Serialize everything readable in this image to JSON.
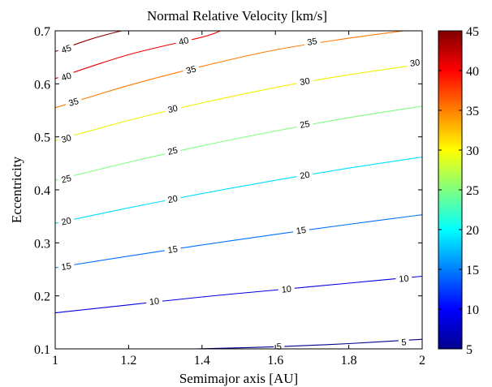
{
  "chart_data": {
    "type": "contour",
    "title": "Normal Relative Velocity [km/s]",
    "xlabel": "Semimajor axis [AU]",
    "ylabel": "Eccentricity",
    "xlim": [
      1,
      2
    ],
    "ylim": [
      0.1,
      0.7
    ],
    "x_ticks": [
      "1",
      "1.2",
      "1.4",
      "1.6",
      "1.8",
      "2"
    ],
    "y_ticks": [
      "0.1",
      "0.2",
      "0.3",
      "0.4",
      "0.5",
      "0.6",
      "0.7"
    ],
    "colorbar": {
      "colormap": "jet",
      "range": [
        5,
        45
      ],
      "ticks": [
        "5",
        "10",
        "15",
        "20",
        "25",
        "30",
        "35",
        "40",
        "45"
      ]
    },
    "contour_levels": [
      {
        "level": 5,
        "label": "5",
        "color": "#00008f",
        "points": [
          [
            1.38,
            0.1
          ],
          [
            1.6,
            0.104
          ],
          [
            1.8,
            0.11
          ],
          [
            2.0,
            0.118
          ]
        ],
        "label_positions": [
          [
            1.61,
            0.105
          ],
          [
            1.95,
            0.113
          ]
        ]
      },
      {
        "level": 10,
        "label": "10",
        "color": "#0000df",
        "points": [
          [
            1.0,
            0.168
          ],
          [
            1.2,
            0.183
          ],
          [
            1.4,
            0.198
          ],
          [
            1.6,
            0.211
          ],
          [
            1.8,
            0.224
          ],
          [
            2.0,
            0.237
          ]
        ],
        "label_positions": [
          [
            1.27,
            0.19
          ],
          [
            1.63,
            0.213
          ],
          [
            1.95,
            0.233
          ]
        ]
      },
      {
        "level": 15,
        "label": "15",
        "color": "#0070ff",
        "points": [
          [
            1.0,
            0.253
          ],
          [
            1.2,
            0.275
          ],
          [
            1.4,
            0.296
          ],
          [
            1.6,
            0.316
          ],
          [
            1.8,
            0.335
          ],
          [
            2.0,
            0.353
          ]
        ],
        "label_positions": [
          [
            1.03,
            0.256
          ],
          [
            1.32,
            0.288
          ],
          [
            1.67,
            0.324
          ]
        ]
      },
      {
        "level": 20,
        "label": "20",
        "color": "#00dfff",
        "points": [
          [
            1.0,
            0.337
          ],
          [
            1.2,
            0.366
          ],
          [
            1.4,
            0.393
          ],
          [
            1.6,
            0.418
          ],
          [
            1.8,
            0.441
          ],
          [
            2.0,
            0.462
          ]
        ],
        "label_positions": [
          [
            1.03,
            0.341
          ],
          [
            1.32,
            0.383
          ],
          [
            1.68,
            0.428
          ]
        ]
      },
      {
        "level": 25,
        "label": "25",
        "color": "#80ff80",
        "points": [
          [
            1.0,
            0.418
          ],
          [
            1.2,
            0.452
          ],
          [
            1.4,
            0.483
          ],
          [
            1.6,
            0.511
          ],
          [
            1.8,
            0.536
          ],
          [
            2.0,
            0.558
          ]
        ],
        "label_positions": [
          [
            1.03,
            0.421
          ],
          [
            1.32,
            0.474
          ],
          [
            1.68,
            0.524
          ]
        ]
      },
      {
        "level": 30,
        "label": "30",
        "color": "#f0f000",
        "points": [
          [
            1.0,
            0.493
          ],
          [
            1.2,
            0.531
          ],
          [
            1.4,
            0.564
          ],
          [
            1.6,
            0.593
          ],
          [
            1.8,
            0.617
          ],
          [
            2.0,
            0.637
          ]
        ],
        "label_positions": [
          [
            1.03,
            0.497
          ],
          [
            1.32,
            0.553
          ],
          [
            1.68,
            0.605
          ],
          [
            1.98,
            0.64
          ]
        ]
      },
      {
        "level": 35,
        "label": "35",
        "color": "#ff7a00",
        "points": [
          [
            1.0,
            0.555
          ],
          [
            1.2,
            0.597
          ],
          [
            1.4,
            0.633
          ],
          [
            1.6,
            0.664
          ],
          [
            1.8,
            0.686
          ],
          [
            1.95,
            0.7
          ]
        ],
        "label_positions": [
          [
            1.05,
            0.566
          ],
          [
            1.37,
            0.627
          ],
          [
            1.7,
            0.68
          ]
        ]
      },
      {
        "level": 40,
        "label": "40",
        "color": "#f00000",
        "points": [
          [
            1.0,
            0.61
          ],
          [
            1.2,
            0.655
          ],
          [
            1.4,
            0.688
          ],
          [
            1.45,
            0.7
          ]
        ],
        "label_positions": [
          [
            1.03,
            0.614
          ],
          [
            1.35,
            0.681
          ]
        ]
      },
      {
        "level": 45,
        "label": "45",
        "color": "#8f0000",
        "points": [
          [
            1.0,
            0.661
          ],
          [
            1.1,
            0.685
          ],
          [
            1.18,
            0.7
          ]
        ],
        "label_positions": [
          [
            1.03,
            0.666
          ]
        ]
      }
    ]
  }
}
